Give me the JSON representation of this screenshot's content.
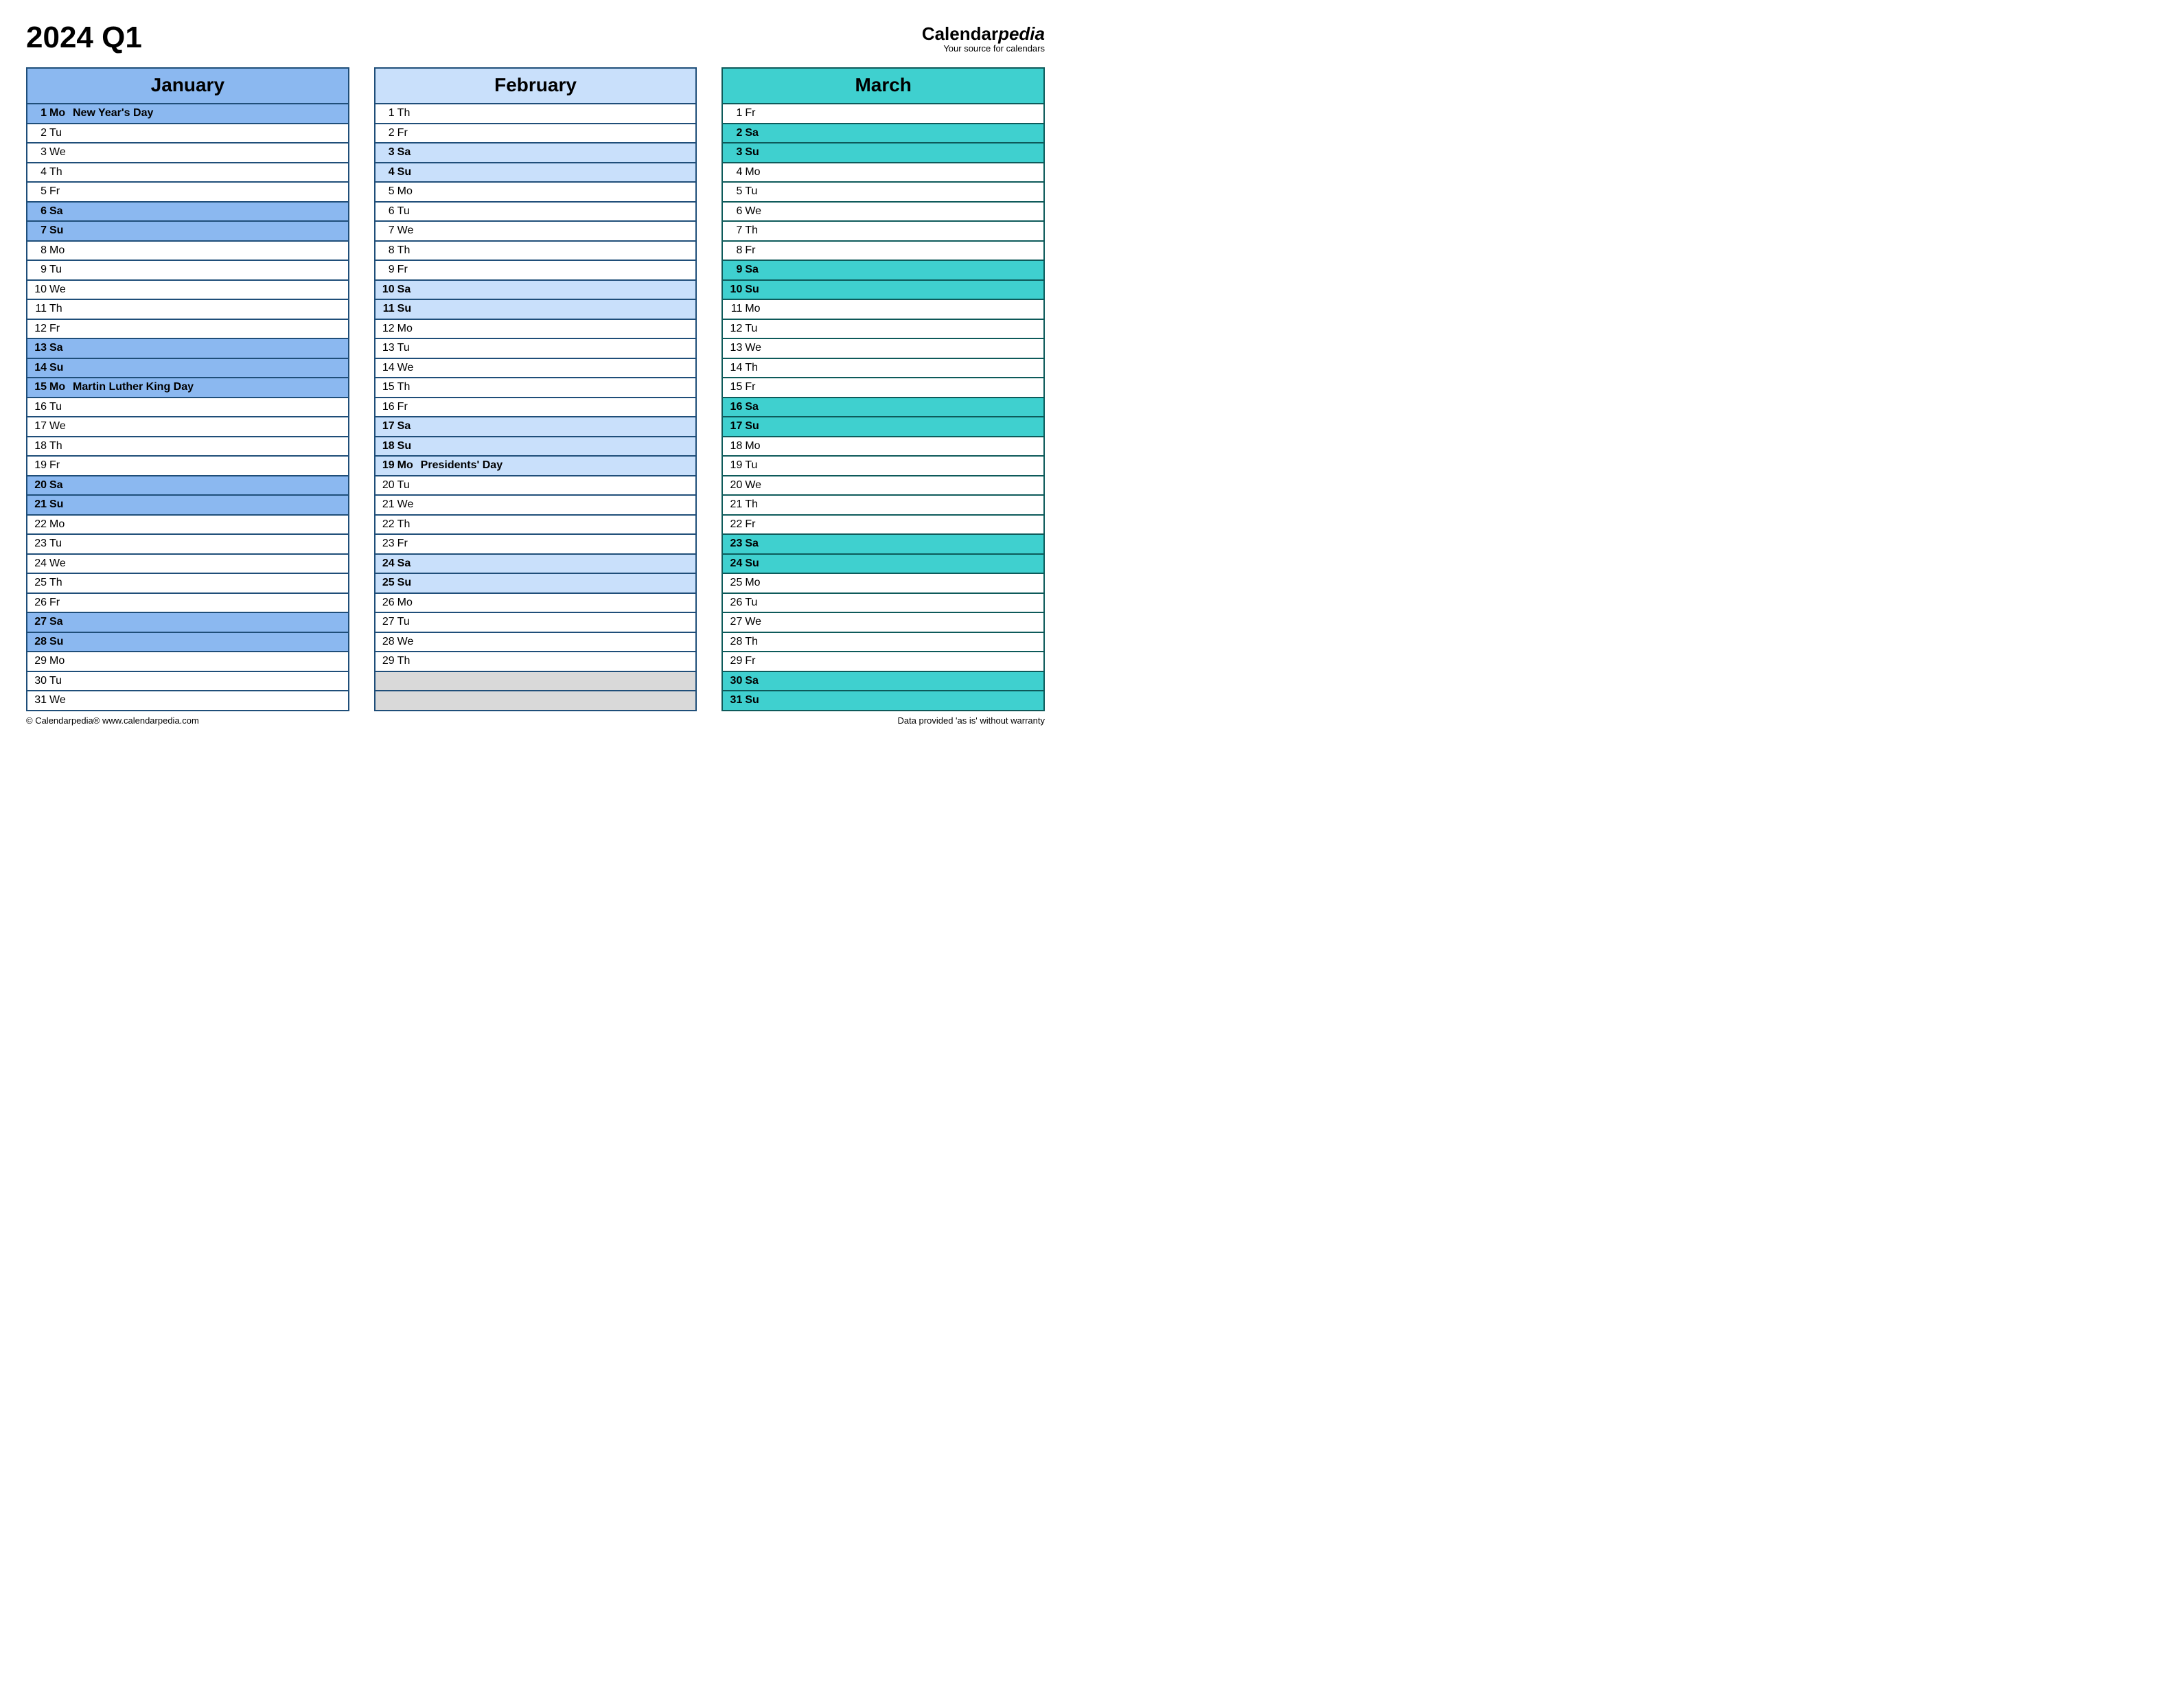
{
  "title": "2024 Q1",
  "brand": {
    "prefix": "Calendar",
    "suffix": "pedia",
    "tagline": "Your source for calendars"
  },
  "footer": {
    "left": "© Calendarpedia®   www.calendarpedia.com",
    "right": "Data provided 'as is' without warranty"
  },
  "styling": {
    "background": "#ffffff",
    "title_fontsize": 44,
    "month_header_fontsize": 28,
    "row_fontsize": 16,
    "row_height": 28.5,
    "border_width": 2,
    "empty_fill": "#d9d9d9"
  },
  "months": [
    {
      "name": "January",
      "border_color": "#1f4e79",
      "header_bg": "#8bb8f0",
      "highlight_bg": "#8bb8f0",
      "total_rows": 31,
      "days": [
        {
          "n": 1,
          "w": "Mo",
          "e": "New Year's Day",
          "hl": true
        },
        {
          "n": 2,
          "w": "Tu"
        },
        {
          "n": 3,
          "w": "We"
        },
        {
          "n": 4,
          "w": "Th"
        },
        {
          "n": 5,
          "w": "Fr"
        },
        {
          "n": 6,
          "w": "Sa",
          "hl": true
        },
        {
          "n": 7,
          "w": "Su",
          "hl": true
        },
        {
          "n": 8,
          "w": "Mo"
        },
        {
          "n": 9,
          "w": "Tu"
        },
        {
          "n": 10,
          "w": "We"
        },
        {
          "n": 11,
          "w": "Th"
        },
        {
          "n": 12,
          "w": "Fr"
        },
        {
          "n": 13,
          "w": "Sa",
          "hl": true
        },
        {
          "n": 14,
          "w": "Su",
          "hl": true
        },
        {
          "n": 15,
          "w": "Mo",
          "e": "Martin Luther King Day",
          "hl": true
        },
        {
          "n": 16,
          "w": "Tu"
        },
        {
          "n": 17,
          "w": "We"
        },
        {
          "n": 18,
          "w": "Th"
        },
        {
          "n": 19,
          "w": "Fr"
        },
        {
          "n": 20,
          "w": "Sa",
          "hl": true
        },
        {
          "n": 21,
          "w": "Su",
          "hl": true
        },
        {
          "n": 22,
          "w": "Mo"
        },
        {
          "n": 23,
          "w": "Tu"
        },
        {
          "n": 24,
          "w": "We"
        },
        {
          "n": 25,
          "w": "Th"
        },
        {
          "n": 26,
          "w": "Fr"
        },
        {
          "n": 27,
          "w": "Sa",
          "hl": true
        },
        {
          "n": 28,
          "w": "Su",
          "hl": true
        },
        {
          "n": 29,
          "w": "Mo"
        },
        {
          "n": 30,
          "w": "Tu"
        },
        {
          "n": 31,
          "w": "We"
        }
      ]
    },
    {
      "name": "February",
      "border_color": "#1f4e79",
      "header_bg": "#c9e0fb",
      "highlight_bg": "#c9e0fb",
      "total_rows": 31,
      "days": [
        {
          "n": 1,
          "w": "Th"
        },
        {
          "n": 2,
          "w": "Fr"
        },
        {
          "n": 3,
          "w": "Sa",
          "hl": true
        },
        {
          "n": 4,
          "w": "Su",
          "hl": true
        },
        {
          "n": 5,
          "w": "Mo"
        },
        {
          "n": 6,
          "w": "Tu"
        },
        {
          "n": 7,
          "w": "We"
        },
        {
          "n": 8,
          "w": "Th"
        },
        {
          "n": 9,
          "w": "Fr"
        },
        {
          "n": 10,
          "w": "Sa",
          "hl": true
        },
        {
          "n": 11,
          "w": "Su",
          "hl": true
        },
        {
          "n": 12,
          "w": "Mo"
        },
        {
          "n": 13,
          "w": "Tu"
        },
        {
          "n": 14,
          "w": "We"
        },
        {
          "n": 15,
          "w": "Th"
        },
        {
          "n": 16,
          "w": "Fr"
        },
        {
          "n": 17,
          "w": "Sa",
          "hl": true
        },
        {
          "n": 18,
          "w": "Su",
          "hl": true
        },
        {
          "n": 19,
          "w": "Mo",
          "e": "Presidents' Day",
          "hl": true
        },
        {
          "n": 20,
          "w": "Tu"
        },
        {
          "n": 21,
          "w": "We"
        },
        {
          "n": 22,
          "w": "Th"
        },
        {
          "n": 23,
          "w": "Fr"
        },
        {
          "n": 24,
          "w": "Sa",
          "hl": true
        },
        {
          "n": 25,
          "w": "Su",
          "hl": true
        },
        {
          "n": 26,
          "w": "Mo"
        },
        {
          "n": 27,
          "w": "Tu"
        },
        {
          "n": 28,
          "w": "We"
        },
        {
          "n": 29,
          "w": "Th"
        }
      ]
    },
    {
      "name": "March",
      "border_color": "#0d5a5a",
      "header_bg": "#3fd0cf",
      "highlight_bg": "#3fd0cf",
      "total_rows": 31,
      "days": [
        {
          "n": 1,
          "w": "Fr"
        },
        {
          "n": 2,
          "w": "Sa",
          "hl": true
        },
        {
          "n": 3,
          "w": "Su",
          "hl": true
        },
        {
          "n": 4,
          "w": "Mo"
        },
        {
          "n": 5,
          "w": "Tu"
        },
        {
          "n": 6,
          "w": "We"
        },
        {
          "n": 7,
          "w": "Th"
        },
        {
          "n": 8,
          "w": "Fr"
        },
        {
          "n": 9,
          "w": "Sa",
          "hl": true
        },
        {
          "n": 10,
          "w": "Su",
          "hl": true
        },
        {
          "n": 11,
          "w": "Mo"
        },
        {
          "n": 12,
          "w": "Tu"
        },
        {
          "n": 13,
          "w": "We"
        },
        {
          "n": 14,
          "w": "Th"
        },
        {
          "n": 15,
          "w": "Fr"
        },
        {
          "n": 16,
          "w": "Sa",
          "hl": true
        },
        {
          "n": 17,
          "w": "Su",
          "hl": true
        },
        {
          "n": 18,
          "w": "Mo"
        },
        {
          "n": 19,
          "w": "Tu"
        },
        {
          "n": 20,
          "w": "We"
        },
        {
          "n": 21,
          "w": "Th"
        },
        {
          "n": 22,
          "w": "Fr"
        },
        {
          "n": 23,
          "w": "Sa",
          "hl": true
        },
        {
          "n": 24,
          "w": "Su",
          "hl": true
        },
        {
          "n": 25,
          "w": "Mo"
        },
        {
          "n": 26,
          "w": "Tu"
        },
        {
          "n": 27,
          "w": "We"
        },
        {
          "n": 28,
          "w": "Th"
        },
        {
          "n": 29,
          "w": "Fr"
        },
        {
          "n": 30,
          "w": "Sa",
          "hl": true
        },
        {
          "n": 31,
          "w": "Su",
          "hl": true
        }
      ]
    }
  ]
}
